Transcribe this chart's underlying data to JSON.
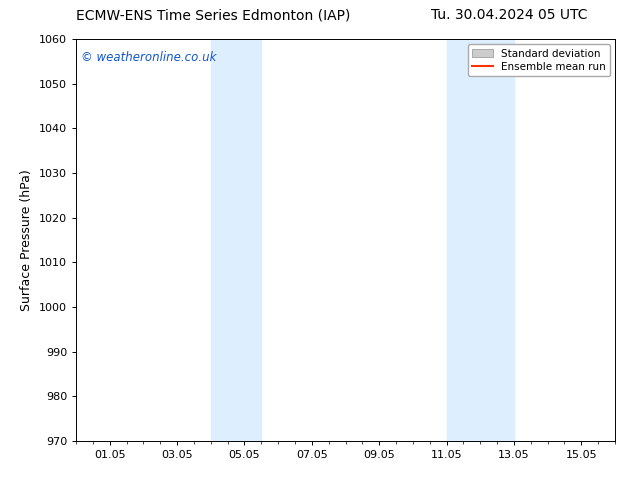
{
  "title_left": "ECMW-ENS Time Series Edmonton (IAP)",
  "title_right": "Tu. 30.04.2024 05 UTC",
  "ylabel": "Surface Pressure (hPa)",
  "ylim": [
    970,
    1060
  ],
  "yticks": [
    970,
    980,
    990,
    1000,
    1010,
    1020,
    1030,
    1040,
    1050,
    1060
  ],
  "xtick_labels": [
    "01.05",
    "03.05",
    "05.05",
    "07.05",
    "09.05",
    "11.05",
    "13.05",
    "15.05"
  ],
  "xtick_positions": [
    1,
    3,
    5,
    7,
    9,
    11,
    13,
    15
  ],
  "xlim": [
    0,
    16
  ],
  "shaded_regions": [
    {
      "start": 4.0,
      "end": 5.5
    },
    {
      "start": 11.0,
      "end": 13.0
    }
  ],
  "shaded_color": "#ddeeff",
  "watermark": "© weatheronline.co.uk",
  "watermark_color": "#1155cc",
  "legend_std_label": "Standard deviation",
  "legend_mean_label": "Ensemble mean run",
  "legend_std_color": "#cccccc",
  "legend_mean_color": "#ff3300",
  "bg_color": "#ffffff",
  "title_fontsize": 10,
  "tick_fontsize": 8,
  "ylabel_fontsize": 9
}
